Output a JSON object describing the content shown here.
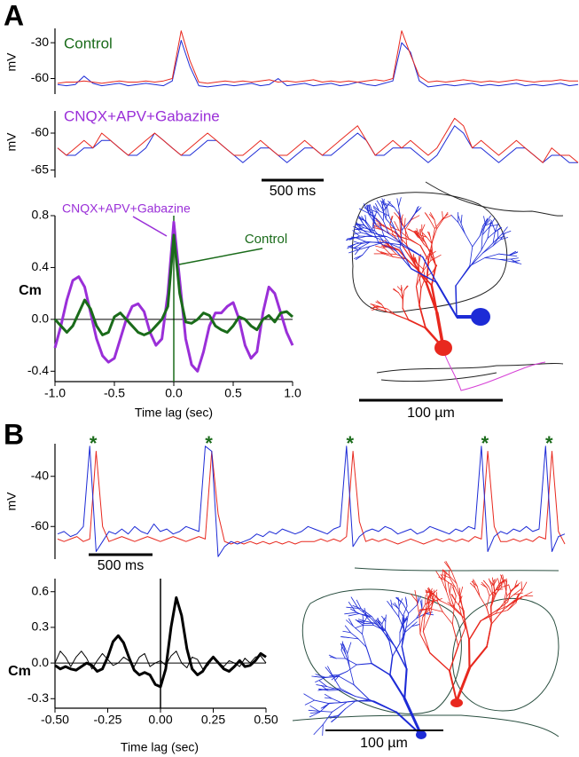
{
  "panel_labels": [
    "A",
    "B"
  ],
  "images": [
    {
      "scale_bar": "100 µm"
    },
    {
      "scale_bar": "100 µm"
    }
  ],
  "chart_data": [
    {
      "type": "line",
      "y_label": "mV",
      "label": "Control",
      "label_color": "#1a6b1a",
      "ylim": [
        -73,
        -18
      ],
      "yticks": [
        -30,
        -60
      ],
      "series": [
        {
          "color": "#e8281e",
          "values": [
            -64,
            -63,
            -63,
            -62,
            -63,
            -64,
            -63,
            -62,
            -63,
            -63,
            -62,
            -63,
            -62,
            -60,
            -20,
            -45,
            -63,
            -64,
            -63,
            -62,
            -63,
            -62,
            -63,
            -62,
            -61,
            -63,
            -62,
            -63,
            -62,
            -61,
            -63,
            -62,
            -63,
            -62,
            -63,
            -62,
            -61,
            -62,
            -60,
            -20,
            -40,
            -58,
            -63,
            -62,
            -63,
            -62,
            -61,
            -62,
            -63,
            -62,
            -63,
            -62,
            -61,
            -62,
            -63,
            -62,
            -62,
            -61,
            -62,
            -62
          ]
        },
        {
          "color": "#1d2bd6",
          "values": [
            -65,
            -66,
            -65,
            -58,
            -64,
            -66,
            -65,
            -64,
            -66,
            -65,
            -64,
            -65,
            -66,
            -62,
            -28,
            -50,
            -66,
            -67,
            -66,
            -65,
            -66,
            -65,
            -64,
            -66,
            -65,
            -60,
            -66,
            -65,
            -64,
            -66,
            -65,
            -64,
            -66,
            -65,
            -63,
            -65,
            -66,
            -64,
            -62,
            -30,
            -38,
            -62,
            -67,
            -66,
            -65,
            -66,
            -65,
            -64,
            -66,
            -65,
            -66,
            -65,
            -64,
            -66,
            -65,
            -66,
            -65,
            -64,
            -66,
            -65
          ]
        }
      ]
    },
    {
      "type": "line",
      "y_label": "mV",
      "label": "CNQX+APV+Gabazine",
      "label_color": "#9a2fd8",
      "scale_bar": "500 ms",
      "ylim": [
        -66,
        -57
      ],
      "yticks": [
        -60,
        -65
      ],
      "series": [
        {
          "color": "#e8281e",
          "values": [
            -62,
            -63,
            -62,
            -61,
            -62,
            -60,
            -61,
            -62,
            -63,
            -62,
            -61,
            -60,
            -61,
            -62,
            -63,
            -62,
            -61,
            -60,
            -61,
            -62,
            -63,
            -63,
            -62,
            -61,
            -62,
            -63,
            -63,
            -62,
            -61,
            -62,
            -63,
            -62,
            -61,
            -60,
            -59,
            -61,
            -63,
            -62,
            -61,
            -62,
            -61,
            -62,
            -63,
            -62,
            -60,
            -58,
            -59,
            -62,
            -61,
            -62,
            -63,
            -62,
            -61,
            -62,
            -63,
            -64,
            -62,
            -63,
            -63,
            -64
          ]
        },
        {
          "color": "#1d2bd6",
          "values": [
            -62,
            -63,
            -63,
            -62,
            -62,
            -61,
            -61,
            -62,
            -63,
            -63,
            -62,
            -60,
            -61,
            -62,
            -63,
            -63,
            -62,
            -61,
            -61,
            -62,
            -63,
            -64,
            -63,
            -62,
            -62,
            -63,
            -64,
            -63,
            -62,
            -62,
            -63,
            -63,
            -62,
            -61,
            -60,
            -61,
            -63,
            -63,
            -62,
            -62,
            -62,
            -63,
            -64,
            -63,
            -61,
            -59,
            -60,
            -62,
            -62,
            -63,
            -64,
            -63,
            -62,
            -62,
            -63,
            -64,
            -63,
            -63,
            -64,
            -64
          ]
        }
      ]
    },
    {
      "type": "correlogram",
      "x_label": "Time lag (sec)",
      "y_label": "Cm",
      "vline_color": "#1a6b1a",
      "xlim": [
        -1,
        1
      ],
      "xticks": [
        {
          "value": -1,
          "label": "-1.0"
        },
        -0.5,
        {
          "value": 0,
          "label": "0.0"
        },
        0.5,
        {
          "value": 1,
          "label": "1.0"
        }
      ],
      "ylim": [
        -0.48,
        0.8
      ],
      "yticks": [
        0.8,
        0.4,
        {
          "value": 0,
          "label": "0.0"
        },
        -0.4
      ],
      "x": [
        -1,
        -0.95,
        -0.9,
        -0.85,
        -0.8,
        -0.75,
        -0.7,
        -0.65,
        -0.6,
        -0.55,
        -0.5,
        -0.45,
        -0.4,
        -0.35,
        -0.3,
        -0.25,
        -0.2,
        -0.15,
        -0.1,
        -0.05,
        0,
        0.05,
        0.1,
        0.15,
        0.2,
        0.25,
        0.3,
        0.35,
        0.4,
        0.45,
        0.5,
        0.55,
        0.6,
        0.65,
        0.7,
        0.75,
        0.8,
        0.85,
        0.9,
        0.95,
        1
      ],
      "series": [
        {
          "name": "CNQX+APV+Gabazine",
          "color": "#9a2fd8",
          "line_width": 3,
          "values": [
            -0.22,
            -0.05,
            0.15,
            0.3,
            0.33,
            0.25,
            0.05,
            -0.15,
            -0.28,
            -0.33,
            -0.3,
            -0.15,
            0,
            0.1,
            0.12,
            0.06,
            -0.1,
            -0.2,
            -0.15,
            0.2,
            0.75,
            0.3,
            -0.15,
            -0.35,
            -0.4,
            -0.25,
            -0.05,
            0.05,
            0.05,
            0.1,
            0.13,
            0,
            -0.2,
            -0.3,
            -0.25,
            0.05,
            0.25,
            0.2,
            0.05,
            -0.1,
            -0.2
          ]
        },
        {
          "name": "Control",
          "color": "#1a6b1a",
          "line_width": 3,
          "values": [
            0,
            -0.05,
            -0.1,
            -0.05,
            0.05,
            0.15,
            0.08,
            -0.05,
            -0.12,
            -0.1,
            0.02,
            0.05,
            0,
            -0.05,
            -0.1,
            -0.12,
            -0.1,
            -0.05,
            0,
            0.1,
            0.65,
            0.2,
            -0.02,
            -0.03,
            0,
            0.05,
            0.03,
            -0.05,
            -0.08,
            -0.1,
            -0.05,
            0.02,
            0,
            -0.05,
            -0.08,
            0,
            0.03,
            -0.02,
            0.05,
            0.06,
            0.02
          ]
        }
      ]
    },
    {
      "type": "line",
      "y_label": "mV",
      "scale_bar": "500 ms",
      "ylim": [
        -73,
        -27
      ],
      "yticks": [
        -40,
        -60
      ],
      "annotations": [
        {
          "text": "*",
          "x": 5
        },
        {
          "text": "*",
          "x": 23
        },
        {
          "text": "*",
          "x": 45
        },
        {
          "text": "*",
          "x": 66
        },
        {
          "text": "*",
          "x": 76
        }
      ],
      "annotation_color": "#1a6b1a",
      "series": [
        {
          "color": "#1d2bd6",
          "values": [
            -63,
            -62,
            -64,
            -63,
            -60,
            -28,
            -70,
            -66,
            -62,
            -63,
            -61,
            -63,
            -60,
            -62,
            -63,
            -59,
            -62,
            -61,
            -63,
            -62,
            -60,
            -61,
            -62,
            -28,
            -30,
            -72,
            -68,
            -66,
            -67,
            -66,
            -65,
            -63,
            -64,
            -62,
            -63,
            -61,
            -62,
            -63,
            -62,
            -60,
            -61,
            -62,
            -63,
            -61,
            -60,
            -28,
            -68,
            -64,
            -62,
            -61,
            -62,
            -60,
            -61,
            -63,
            -62,
            -61,
            -63,
            -62,
            -60,
            -61,
            -62,
            -63,
            -61,
            -62,
            -60,
            -61,
            -28,
            -70,
            -64,
            -62,
            -63,
            -61,
            -62,
            -60,
            -62,
            -61,
            -28,
            -70,
            -64,
            -63
          ]
        },
        {
          "color": "#e8281e",
          "values": [
            -65,
            -66,
            -65,
            -64,
            -66,
            -65,
            -30,
            -60,
            -66,
            -65,
            -64,
            -65,
            -66,
            -65,
            -64,
            -65,
            -66,
            -65,
            -64,
            -65,
            -66,
            -65,
            -64,
            -65,
            -30,
            -55,
            -66,
            -67,
            -66,
            -67,
            -66,
            -67,
            -66,
            -67,
            -66,
            -67,
            -66,
            -67,
            -66,
            -66,
            -66,
            -65,
            -66,
            -65,
            -66,
            -64,
            -30,
            -58,
            -66,
            -65,
            -66,
            -65,
            -66,
            -67,
            -66,
            -65,
            -66,
            -67,
            -66,
            -65,
            -66,
            -65,
            -66,
            -65,
            -66,
            -64,
            -65,
            -30,
            -60,
            -66,
            -66,
            -65,
            -66,
            -65,
            -66,
            -64,
            -65,
            -30,
            -62,
            -67
          ]
        }
      ]
    },
    {
      "type": "correlogram",
      "x_label": "Time lag (sec)",
      "y_label": "Cm",
      "vline_color": "#000000",
      "xlim": [
        -0.5,
        0.5
      ],
      "xticks": [
        {
          "value": -0.5,
          "label": "-0.50"
        },
        {
          "value": -0.25,
          "label": "-0.25"
        },
        {
          "value": 0,
          "label": "0.00"
        },
        0.25,
        {
          "value": 0.5,
          "label": "0.50"
        }
      ],
      "ylim": [
        -0.38,
        0.71
      ],
      "yticks": [
        0.6,
        0.3,
        {
          "value": 0,
          "label": "0.0"
        },
        -0.3
      ],
      "x": [
        -0.5,
        -0.475,
        -0.45,
        -0.425,
        -0.4,
        -0.375,
        -0.35,
        -0.325,
        -0.3,
        -0.275,
        -0.25,
        -0.225,
        -0.2,
        -0.175,
        -0.15,
        -0.125,
        -0.1,
        -0.075,
        -0.05,
        -0.025,
        0,
        0.025,
        0.05,
        0.075,
        0.1,
        0.125,
        0.15,
        0.175,
        0.2,
        0.225,
        0.25,
        0.275,
        0.3,
        0.325,
        0.35,
        0.375,
        0.4,
        0.425,
        0.45,
        0.475,
        0.5
      ],
      "series": [
        {
          "color": "#000000",
          "line_width": 3,
          "values": [
            -0.02,
            -0.05,
            -0.03,
            -0.05,
            -0.06,
            -0.03,
            0,
            -0.02,
            -0.07,
            -0.05,
            0.05,
            0.18,
            0.23,
            0.17,
            0.05,
            -0.06,
            -0.1,
            -0.08,
            -0.1,
            -0.18,
            -0.2,
            -0.05,
            0.3,
            0.55,
            0.4,
            0.12,
            -0.05,
            -0.1,
            -0.07,
            0,
            0.05,
            0,
            -0.05,
            -0.07,
            -0.03,
            0.02,
            -0.03,
            -0.02,
            0.02,
            0.08,
            0.05
          ]
        },
        {
          "color": "#000000",
          "line_width": 1,
          "values": [
            0,
            0.1,
            0.05,
            -0.03,
            0.05,
            0.1,
            0.04,
            -0.05,
            0.02,
            0.08,
            0.03,
            -0.02,
            0,
            0.05,
            0.02,
            -0.03,
            0.05,
            0.08,
            -0.03,
            0,
            0.02,
            -0.02,
            0.06,
            0.1,
            0,
            -0.04,
            0.05,
            0.03,
            -0.05,
            -0.02,
            0.05,
            0,
            -0.03,
            0.02,
            0,
            -0.03,
            0.04,
            0,
            0.05,
            0.06,
            0
          ]
        }
      ]
    }
  ]
}
